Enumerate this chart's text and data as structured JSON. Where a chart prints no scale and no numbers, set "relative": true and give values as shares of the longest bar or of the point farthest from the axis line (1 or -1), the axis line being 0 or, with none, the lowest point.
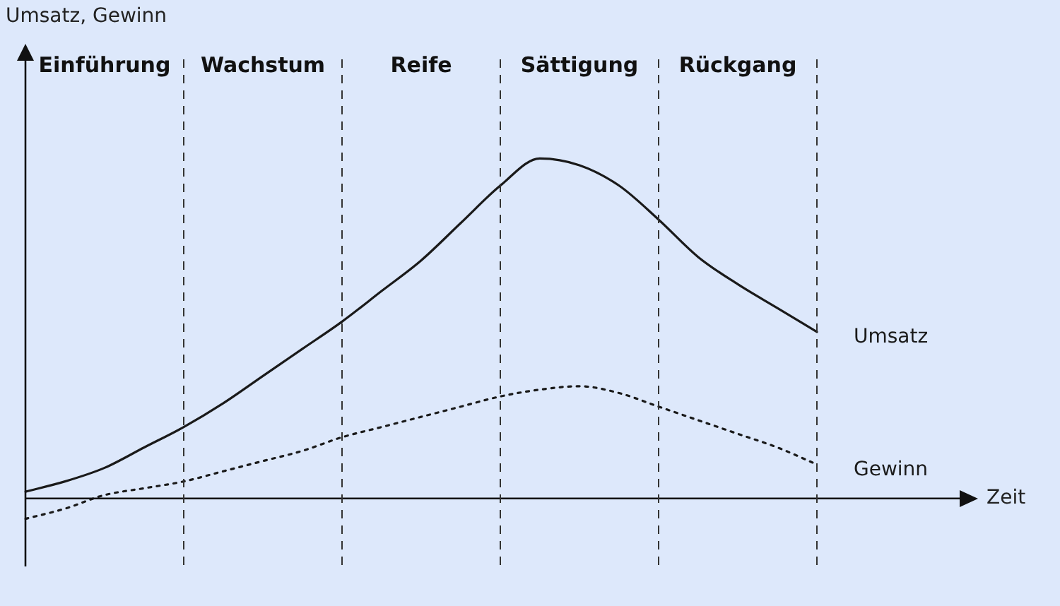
{
  "chart_data": {
    "type": "line",
    "relative": true,
    "xlabel": "Zeit",
    "ylabel": "Umsatz, Gewinn",
    "legend": false,
    "marker": "none",
    "grid": "x",
    "categories": [
      null,
      null,
      "Einführung",
      null,
      null,
      null,
      "Wachstum",
      null,
      null,
      null,
      "Reife",
      null,
      null,
      null,
      "Sättigung",
      null,
      null,
      null,
      "Rückgang",
      null,
      null,
      null,
      null,
      null,
      null
    ],
    "series": [
      {
        "name": "Umsatz",
        "color": "#1a1a1a",
        "line_style": "solid",
        "values": [
          0.02,
          0.05,
          0.09,
          0.15,
          0.21,
          0.28,
          0.36,
          0.44,
          0.52,
          0.61,
          0.7,
          0.81,
          0.92,
          1,
          0.98,
          0.92,
          0.82,
          0.71,
          0.63,
          0.56,
          0.49,
          null,
          null,
          null,
          null
        ]
      },
      {
        "name": "Gewinn",
        "color": "#1a1a1a",
        "line_style": "dotted",
        "values": [
          -0.06,
          -0.03,
          0.01,
          0.03,
          0.05,
          0.08,
          0.11,
          0.14,
          0.18,
          0.21,
          0.24,
          0.27,
          0.3,
          0.32,
          0.33,
          0.31,
          0.27,
          0.23,
          0.19,
          0.15,
          0.1,
          null,
          null,
          null,
          null
        ]
      }
    ]
  }
}
